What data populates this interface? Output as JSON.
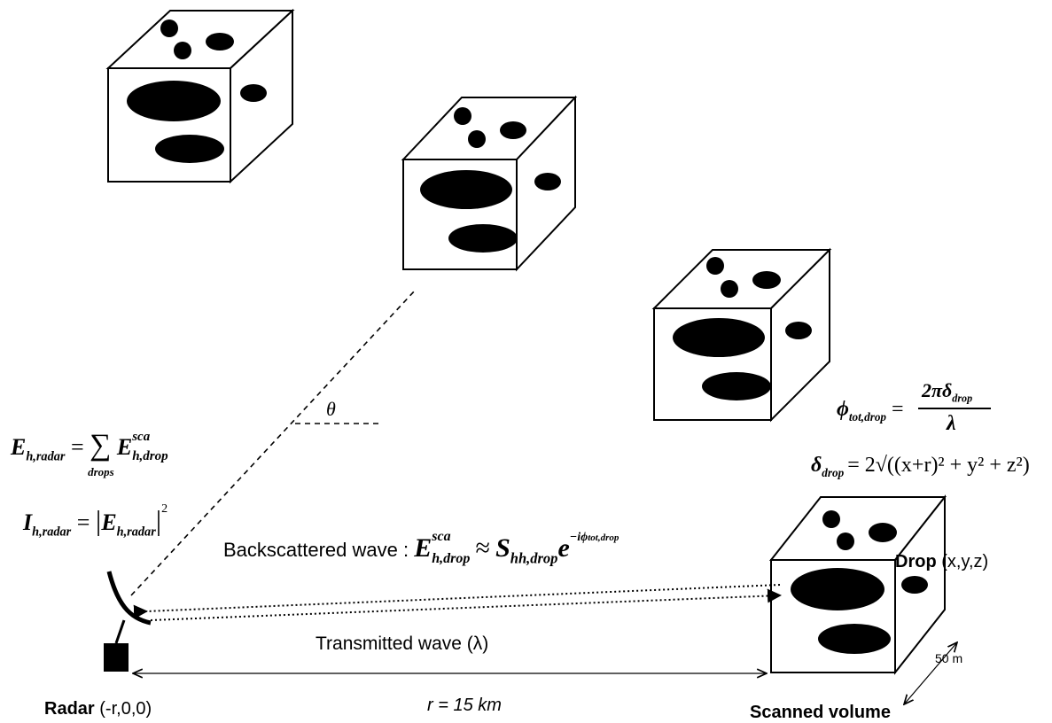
{
  "equations": {
    "e_h_radar": {
      "lhs": "E",
      "lhs_sub": "h,radar",
      "sum": "∑",
      "sum_sub": "drops",
      "rhs": "E",
      "rhs_sub": "h,drop",
      "rhs_sup": "sca"
    },
    "i_h_radar": {
      "lhs": "I",
      "lhs_sub": "h,radar",
      "rhs": "|E",
      "rhs_sub": "h,radar",
      "rhs_close": "|",
      "exp": "2"
    },
    "phi": {
      "lhs": "ϕ",
      "lhs_sub": "tot,drop",
      "num": "2πδ",
      "num_sub": "drop",
      "den": "λ"
    },
    "delta": {
      "lhs": "δ",
      "lhs_sub": "drop",
      "rhs": "= 2√((x+r)² + y² + z²)"
    },
    "backscatter": {
      "prefix": "Backscattered wave :",
      "lhs": "E",
      "lhs_sub": "h,drop",
      "lhs_sup": "sca",
      "approx": "≈",
      "s": "S",
      "s_sub": "hh,drop",
      "e": "e",
      "exp": "−iϕ",
      "exp_sub": "tot,drop"
    }
  },
  "labels": {
    "theta": "θ",
    "transmitted": "Transmitted wave (λ)",
    "radar_bold": "Radar",
    "radar_coords": "(-r,0,0)",
    "distance": "r = 15 km",
    "scanned_volume": "Scanned volume",
    "drop_bold": "Drop",
    "drop_coords": "(x,y,z)",
    "depth": "50 m"
  }
}
